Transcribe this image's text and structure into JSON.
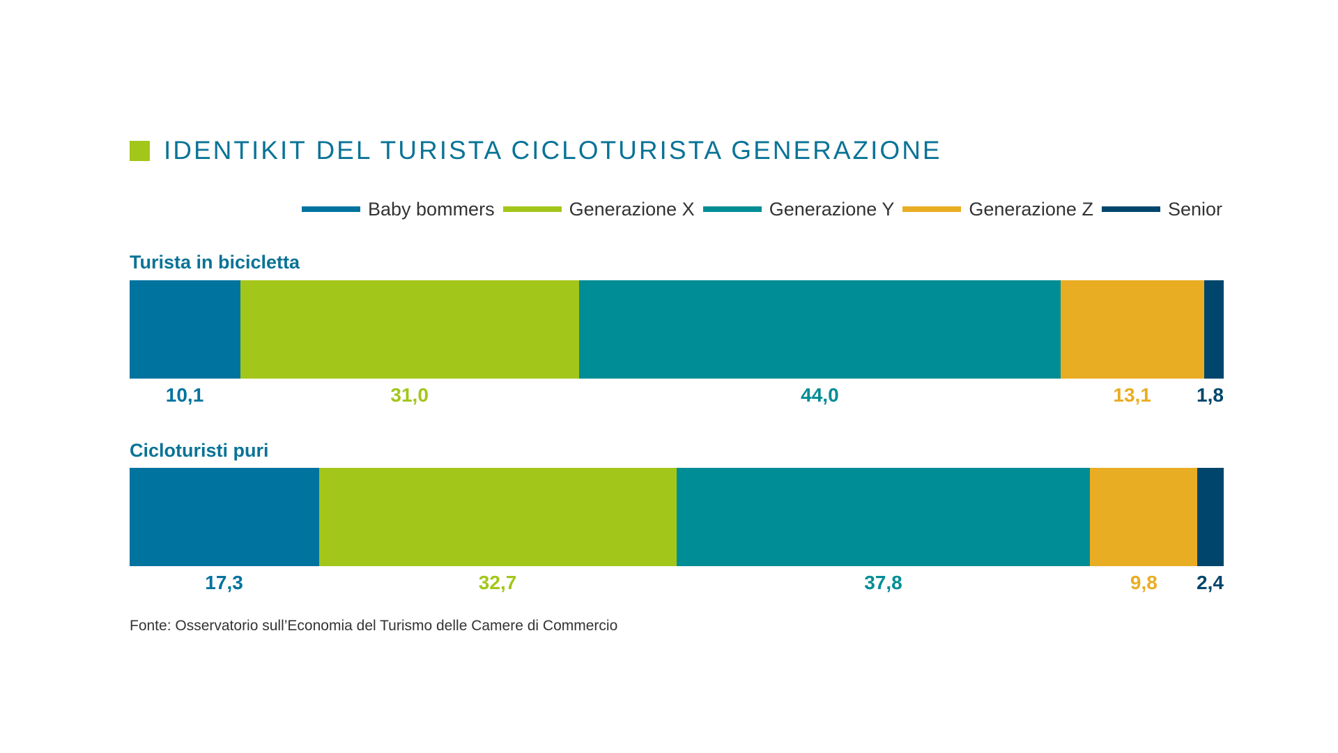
{
  "title": "IDENTIKIT DEL TURISTA CICLOTURISTA GENERAZIONE",
  "source": "Fonte: Osservatorio sull’Economia del Turismo delle Camere di Commercio",
  "colors": {
    "accent_square": "#a3c61a",
    "title": "#0a7396"
  },
  "chart_data": {
    "type": "bar",
    "orientation": "horizontal",
    "stacked": true,
    "normalized_percent": true,
    "legend_position": "top-right",
    "grid": false,
    "categories": [
      "Turista in bicicletta",
      "Cicloturisti puri"
    ],
    "series": [
      {
        "name": "Baby bommers",
        "color": "#00739f",
        "values": [
          10.1,
          17.3
        ],
        "labels": [
          "10,1",
          "17,3"
        ]
      },
      {
        "name": "Generazione X",
        "color": "#a3c61a",
        "values": [
          31.0,
          32.7
        ],
        "labels": [
          "31,0",
          "32,7"
        ]
      },
      {
        "name": "Generazione Y",
        "color": "#008d95",
        "values": [
          44.0,
          37.8
        ],
        "labels": [
          "44,0",
          "37,8"
        ]
      },
      {
        "name": "Generazione Z",
        "color": "#e9ad23",
        "values": [
          13.1,
          9.8
        ],
        "labels": [
          "13,1",
          "9,8"
        ]
      },
      {
        "name": "Senior",
        "color": "#00466c",
        "values": [
          1.8,
          2.4
        ],
        "labels": [
          "1,8",
          "2,4"
        ]
      }
    ]
  }
}
